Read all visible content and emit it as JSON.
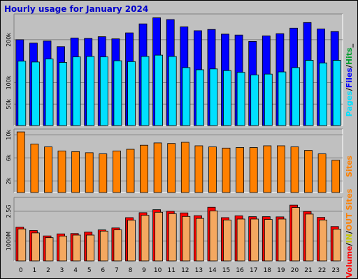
{
  "title": "Hourly usage for January 2024",
  "colors": {
    "pages": "#00e0ff",
    "files": "#0000ff",
    "hits": "#00a030",
    "sites": "#ff8000",
    "volume": "#ff0000",
    "in": "#c8c800",
    "out": "#ff8000",
    "panel_bg": "#c0c0c0",
    "grid": "#808080",
    "title": "#0000cc"
  },
  "legend": {
    "panel1": [
      {
        "text": "Pages",
        "color": "#00e0ff"
      },
      {
        "text": "/",
        "color": "#000000"
      },
      {
        "text": "Files",
        "color": "#0000ff"
      },
      {
        "text": "/",
        "color": "#000000"
      },
      {
        "text": "Hits",
        "color": "#00a030"
      },
      {
        "text": "_",
        "color": "#000000"
      }
    ],
    "panel2": [
      {
        "text": "Sites",
        "color": "#ff8000"
      }
    ],
    "panel3": [
      {
        "text": "Volume",
        "color": "#ff0000"
      },
      {
        "text": "/",
        "color": "#000000"
      },
      {
        "text": "IN",
        "color": "#c8c800"
      },
      {
        "text": "/",
        "color": "#000000"
      },
      {
        "text": "OUT",
        "color": "#ff8000"
      },
      {
        "text": " Sites",
        "color": "#ff8000"
      }
    ]
  },
  "chart_data": [
    {
      "type": "bar",
      "title": "Hourly usage for January 2024",
      "categories": [
        "0",
        "1",
        "2",
        "3",
        "4",
        "5",
        "6",
        "7",
        "8",
        "9",
        "10",
        "11",
        "12",
        "13",
        "14",
        "15",
        "16",
        "17",
        "18",
        "19",
        "20",
        "21",
        "22",
        "23"
      ],
      "ylim": [
        0,
        260000
      ],
      "yticks": [
        {
          "value": 50000,
          "label": "50k"
        },
        {
          "value": 100000,
          "label": "100k"
        },
        {
          "value": 200000,
          "label": "200k"
        }
      ],
      "grid": true,
      "series": [
        {
          "name": "Files",
          "color": "#0000ff",
          "values": [
            200000,
            192000,
            197000,
            184000,
            204000,
            203000,
            207000,
            202000,
            216000,
            237000,
            251000,
            247000,
            230000,
            221000,
            224000,
            213000,
            211000,
            196000,
            209000,
            214000,
            227000,
            240000,
            225000,
            219000
          ]
        },
        {
          "name": "Pages",
          "color": "#00e0ff",
          "values": [
            150000,
            148000,
            155000,
            147000,
            160000,
            161000,
            160000,
            151000,
            149000,
            161000,
            164000,
            161000,
            135000,
            130000,
            132000,
            128000,
            124000,
            118000,
            120000,
            125000,
            135000,
            152000,
            146000,
            152000
          ]
        }
      ]
    },
    {
      "type": "bar",
      "categories": [
        "0",
        "1",
        "2",
        "3",
        "4",
        "5",
        "6",
        "7",
        "8",
        "9",
        "10",
        "11",
        "12",
        "13",
        "14",
        "15",
        "16",
        "17",
        "18",
        "19",
        "20",
        "21",
        "22",
        "23"
      ],
      "ylim": [
        0,
        11000
      ],
      "yticks": [
        {
          "value": 2000,
          "label": "2k"
        },
        {
          "value": 6000,
          "label": "6k"
        },
        {
          "value": 10000,
          "label": "10k"
        }
      ],
      "grid": true,
      "series": [
        {
          "name": "Sites",
          "color": "#ff8000",
          "values": [
            10500,
            8400,
            7900,
            7200,
            7100,
            6900,
            6700,
            7200,
            7500,
            8200,
            8600,
            8500,
            8700,
            8100,
            7900,
            7700,
            7800,
            7800,
            8100,
            8100,
            7900,
            7300,
            6700,
            5600
          ]
        }
      ]
    },
    {
      "type": "bar",
      "categories": [
        "0",
        "1",
        "2",
        "3",
        "4",
        "5",
        "6",
        "7",
        "8",
        "9",
        "10",
        "11",
        "12",
        "13",
        "14",
        "15",
        "16",
        "17",
        "18",
        "19",
        "20",
        "21",
        "22",
        "23"
      ],
      "ylim": [
        0,
        3200
      ],
      "yticks": [
        {
          "value": 1000,
          "label": "1000M"
        },
        {
          "value": 2500,
          "label": "2.5G"
        }
      ],
      "grid": true,
      "series": [
        {
          "name": "Volume",
          "color": "#ff0000",
          "values": [
            1700,
            1530,
            1260,
            1360,
            1380,
            1450,
            1560,
            1660,
            2180,
            2430,
            2580,
            2500,
            2420,
            2280,
            2700,
            2180,
            2270,
            2230,
            2230,
            2220,
            2810,
            2490,
            2190,
            1730
          ]
        },
        {
          "name": "OUT",
          "color": "#f4a860",
          "values": [
            1610,
            1410,
            1170,
            1250,
            1300,
            1300,
            1500,
            1560,
            2050,
            2300,
            2450,
            2380,
            2240,
            2140,
            2520,
            2060,
            2110,
            2110,
            2090,
            2110,
            2690,
            2360,
            2060,
            1600
          ]
        }
      ]
    }
  ]
}
